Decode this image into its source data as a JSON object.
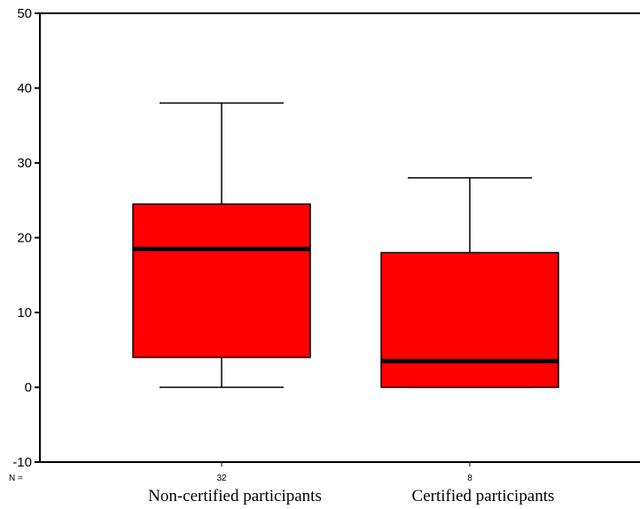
{
  "chart_data": {
    "type": "box",
    "ylim": [
      -10,
      50
    ],
    "yticks": [
      -10,
      0,
      10,
      20,
      30,
      40,
      50
    ],
    "n_prefix": "N =",
    "grid": false,
    "boxes": [
      {
        "category": "Non-certified participants",
        "n": "32",
        "whisker_low": 0,
        "q1": 4,
        "median": 18.5,
        "q3": 24.5,
        "whisker_high": 38
      },
      {
        "category": "Certified participants",
        "n": "8",
        "whisker_low": 0,
        "q1": 0,
        "median": 3.5,
        "q3": 18,
        "whisker_high": 28
      }
    ],
    "colors": {
      "box_fill": "#ff0000",
      "stroke": "#000000"
    }
  }
}
